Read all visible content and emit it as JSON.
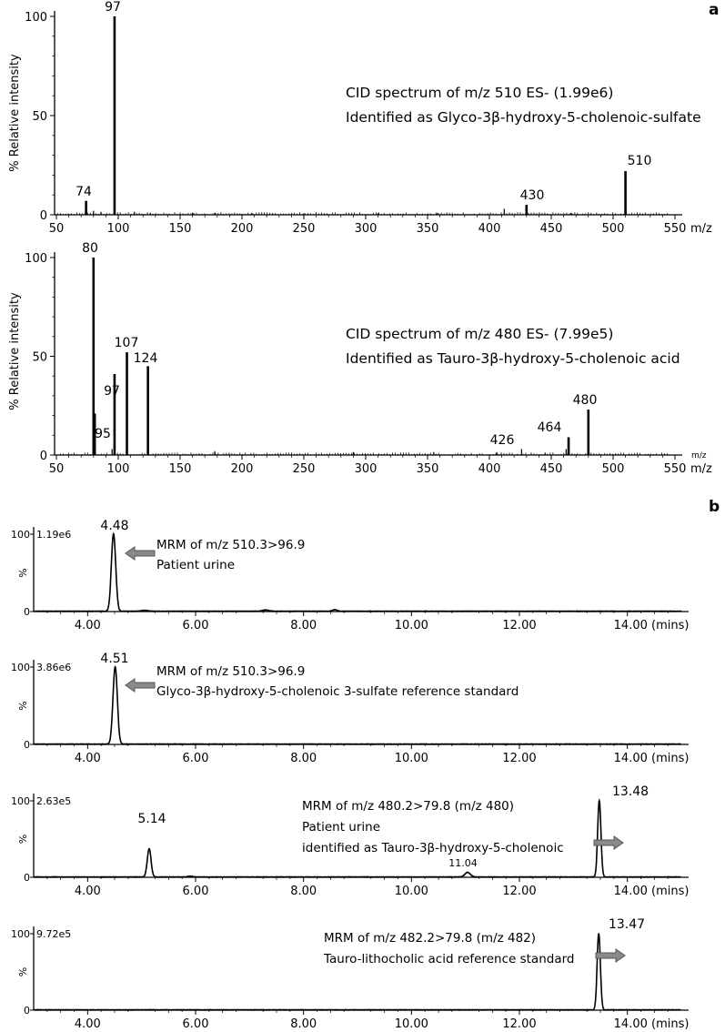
{
  "panel_labels": {
    "a": "a",
    "b": "b"
  },
  "chart_data": [
    {
      "type": "bar",
      "panel": "a",
      "ylabel": "% Relative intensity",
      "xunit": "m/z",
      "xlim": [
        50,
        550
      ],
      "ylim": [
        0,
        100
      ],
      "x_ticks": [
        "50",
        "100",
        "150",
        "200",
        "250",
        "300",
        "350",
        "400",
        "450",
        "500",
        "550"
      ],
      "y_ticks": [
        "0",
        "50",
        "100"
      ],
      "annotation": [
        "CID spectrum of m/z 510 ES- (1.99e6)",
        "Identified as Glyco-3β-hydroxy-5-cholenoic-sulfate"
      ],
      "peaks": [
        {
          "mz": 74,
          "intensity": 7,
          "label": "74"
        },
        {
          "mz": 97,
          "intensity": 100,
          "label": "97"
        },
        {
          "mz": 430,
          "intensity": 5,
          "label": "430"
        },
        {
          "mz": 510,
          "intensity": 22,
          "label": "510"
        },
        {
          "mz": 80,
          "intensity": 2
        },
        {
          "mz": 86,
          "intensity": 1.5
        },
        {
          "mz": 113,
          "intensity": 1.5
        },
        {
          "mz": 126,
          "intensity": 1
        },
        {
          "mz": 160,
          "intensity": 1
        },
        {
          "mz": 178,
          "intensity": 1
        },
        {
          "mz": 208,
          "intensity": 1
        },
        {
          "mz": 250,
          "intensity": 0.8
        },
        {
          "mz": 310,
          "intensity": 0.8
        },
        {
          "mz": 358,
          "intensity": 1
        },
        {
          "mz": 412,
          "intensity": 3
        },
        {
          "mz": 466,
          "intensity": 1
        }
      ]
    },
    {
      "type": "bar",
      "panel": "a",
      "ylabel": "% Relative intensity",
      "xunit": "m/z",
      "xunit_small": "m/z",
      "xlim": [
        50,
        550
      ],
      "ylim": [
        0,
        100
      ],
      "x_ticks": [
        "50",
        "100",
        "150",
        "200",
        "250",
        "300",
        "350",
        "400",
        "450",
        "500",
        "550"
      ],
      "y_ticks": [
        "0",
        "50",
        "100"
      ],
      "annotation": [
        "CID spectrum of m/z 480 ES- (7.99e5)",
        "Identified as Tauro-3β-hydroxy-5-cholenoic acid"
      ],
      "peaks": [
        {
          "mz": 80,
          "intensity": 100,
          "label": "80"
        },
        {
          "mz": 81,
          "intensity": 21
        },
        {
          "mz": 95,
          "intensity": 3,
          "label": "95"
        },
        {
          "mz": 97,
          "intensity": 41,
          "label": "97"
        },
        {
          "mz": 107,
          "intensity": 52,
          "label": "107"
        },
        {
          "mz": 124,
          "intensity": 45,
          "label": "124"
        },
        {
          "mz": 426,
          "intensity": 3,
          "label": "426"
        },
        {
          "mz": 464,
          "intensity": 9,
          "label": "464"
        },
        {
          "mz": 480,
          "intensity": 23,
          "label": "480"
        },
        {
          "mz": 178,
          "intensity": 2
        },
        {
          "mz": 290,
          "intensity": 1.5
        },
        {
          "mz": 355,
          "intensity": 1.5
        },
        {
          "mz": 406,
          "intensity": 1.5
        },
        {
          "mz": 445,
          "intensity": 1.2
        },
        {
          "mz": 462,
          "intensity": 3
        }
      ]
    },
    {
      "type": "line",
      "panel": "b",
      "xunit": "(mins)",
      "xlim": [
        3.0,
        15.0
      ],
      "ylim": [
        0,
        100
      ],
      "x_ticks": [
        "4.00",
        "6.00",
        "8.00",
        "10.00",
        "12.00",
        "14.00"
      ],
      "y_ticks": [
        "0",
        "%",
        "100"
      ],
      "scale": "1.19e6",
      "annotation": [
        "MRM of m/z 510.3>96.9",
        "Patient urine"
      ],
      "peaks": [
        {
          "rt": 4.48,
          "height": 100,
          "width": 0.04,
          "label": "4.48"
        },
        {
          "rt": 5.05,
          "height": 1.2,
          "width": 0.06
        },
        {
          "rt": 7.3,
          "height": 1.5,
          "width": 0.06
        },
        {
          "rt": 8.58,
          "height": 2,
          "width": 0.04
        }
      ]
    },
    {
      "type": "line",
      "panel": "b",
      "xunit": "(mins)",
      "xlim": [
        3.0,
        15.0
      ],
      "ylim": [
        0,
        100
      ],
      "x_ticks": [
        "4.00",
        "6.00",
        "8.00",
        "10.00",
        "12.00",
        "14.00"
      ],
      "y_ticks": [
        "0",
        "%",
        "100"
      ],
      "scale": "3.86e6",
      "annotation": [
        "MRM of m/z 510.3>96.9",
        "Glyco-3β-hydroxy-5-cholenoic 3-sulfate reference standard"
      ],
      "peaks": [
        {
          "rt": 4.51,
          "height": 100,
          "width": 0.04,
          "label": "4.51"
        }
      ]
    },
    {
      "type": "line",
      "panel": "b",
      "xunit": "(mins)",
      "xlim": [
        3.0,
        15.0
      ],
      "ylim": [
        0,
        100
      ],
      "x_ticks": [
        "4.00",
        "6.00",
        "8.00",
        "10.00",
        "12.00",
        "14.00"
      ],
      "y_ticks": [
        "0",
        "%",
        "100"
      ],
      "scale": "2.63e5",
      "annotation": [
        "MRM of m/z 480.2>79.8 (m/z 480)",
        "Patient urine",
        "identified as Tauro-3β-hydroxy-5-cholenoic"
      ],
      "peaks": [
        {
          "rt": 5.14,
          "height": 37,
          "width": 0.035,
          "label": "5.14"
        },
        {
          "rt": 11.04,
          "height": 6,
          "width": 0.05,
          "label": "11.04"
        },
        {
          "rt": 13.48,
          "height": 100,
          "width": 0.03,
          "label": "13.48"
        },
        {
          "rt": 5.9,
          "height": 1,
          "width": 0.05
        }
      ]
    },
    {
      "type": "line",
      "panel": "b",
      "xunit": "(mins)",
      "xlim": [
        3.0,
        15.0
      ],
      "ylim": [
        0,
        100
      ],
      "x_ticks": [
        "4.00",
        "6.00",
        "8.00",
        "10.00",
        "12.00",
        "14.00"
      ],
      "y_ticks": [
        "0",
        "%",
        "100"
      ],
      "scale": "9.72e5",
      "annotation": [
        "MRM of m/z 482.2>79.8 (m/z 482)",
        "Tauro-lithocholic acid reference standard"
      ],
      "peaks": [
        {
          "rt": 13.47,
          "height": 100,
          "width": 0.03,
          "label": "13.47"
        }
      ]
    }
  ]
}
